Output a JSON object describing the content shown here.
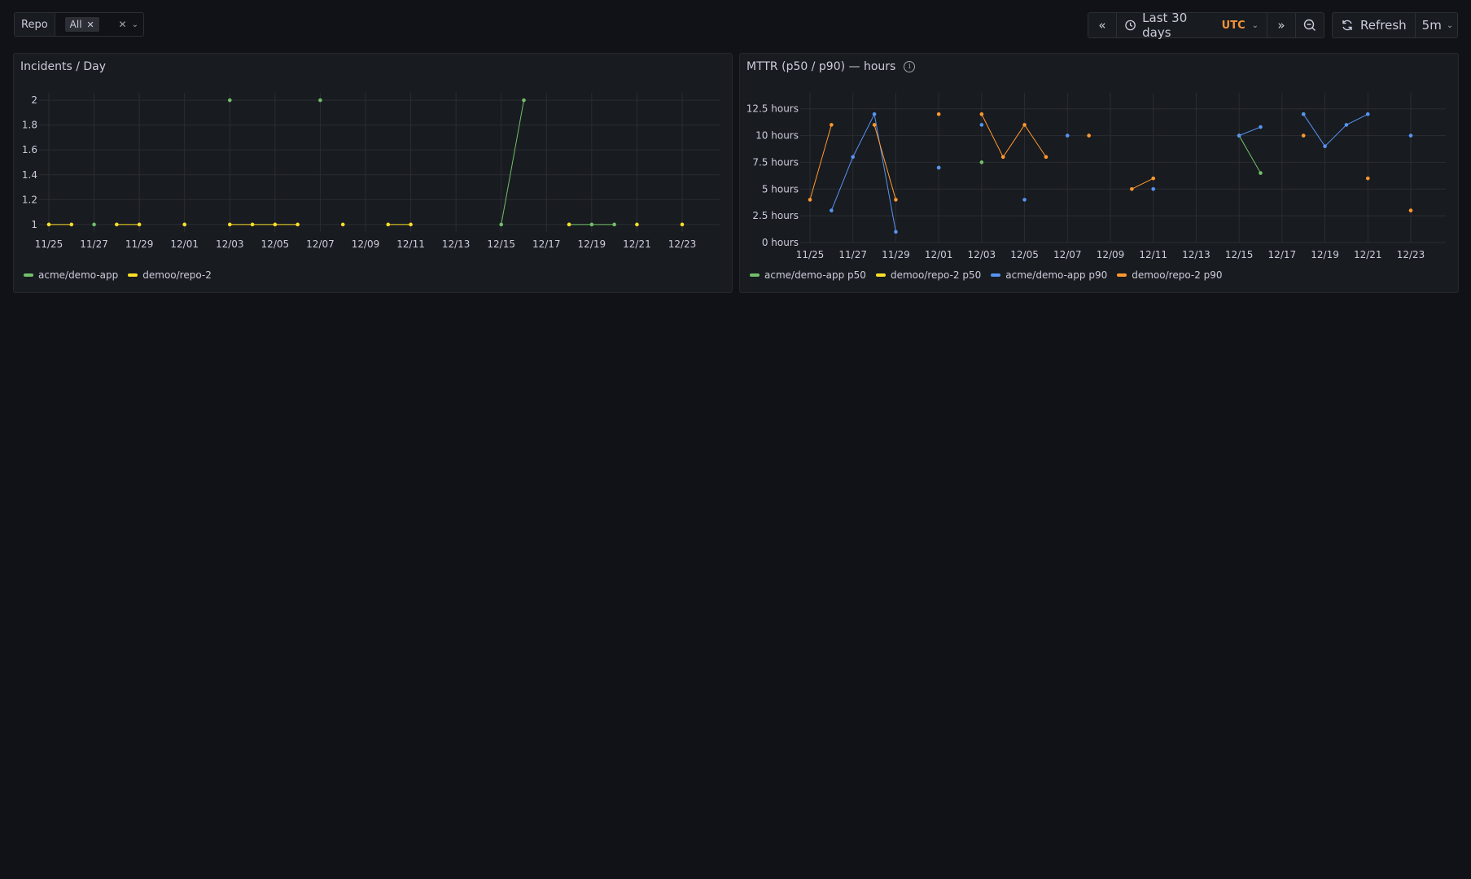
{
  "variables": {
    "repo_label": "Repo",
    "repo_value": "All",
    "clear_icon": "close-icon",
    "caret_icon": "chevron-down-icon"
  },
  "toolbar": {
    "time_range": "Last 30 days",
    "timezone": "UTC",
    "refresh_label": "Refresh",
    "refresh_interval": "5m",
    "icons": [
      "angle-double-left-icon",
      "clock-icon",
      "angle-double-right-icon",
      "zoom-out-icon",
      "sync-icon"
    ]
  },
  "colors": {
    "background": "#111217",
    "panel": "#181b1f",
    "green": "#73bf69",
    "yellow": "#fade2a",
    "blue": "#5794f2",
    "orange": "#ff9830",
    "accent_utc": "#f2933a"
  },
  "panels": [
    {
      "title": "Incidents / Day"
    },
    {
      "title": "MTTR (p50 / p90) — hours",
      "info_icon": "info-circle-icon"
    }
  ],
  "chart_data": [
    {
      "type": "line",
      "title": "Incidents / Day",
      "x": [
        "11/25",
        "11/26",
        "11/27",
        "11/28",
        "11/29",
        "11/30",
        "12/01",
        "12/02",
        "12/03",
        "12/04",
        "12/05",
        "12/06",
        "12/07",
        "12/08",
        "12/09",
        "12/10",
        "12/11",
        "12/12",
        "12/13",
        "12/14",
        "12/15",
        "12/16",
        "12/17",
        "12/18",
        "12/19",
        "12/20",
        "12/21",
        "12/22",
        "12/23"
      ],
      "x_ticks": [
        "11/25",
        "11/27",
        "11/29",
        "12/01",
        "12/03",
        "12/05",
        "12/07",
        "12/09",
        "12/11",
        "12/13",
        "12/15",
        "12/17",
        "12/19",
        "12/21",
        "12/23"
      ],
      "y_ticks": [
        "1",
        "1.2",
        "1.4",
        "1.6",
        "1.8",
        "2"
      ],
      "ylim": [
        1,
        2
      ],
      "grid": true,
      "legend": "bottom-left",
      "series": [
        {
          "name": "acme/demo-app",
          "color": "#73bf69",
          "values": [
            null,
            null,
            1,
            null,
            null,
            null,
            1,
            null,
            2,
            null,
            null,
            null,
            2,
            null,
            null,
            null,
            null,
            null,
            null,
            null,
            1,
            2,
            null,
            1,
            1,
            1,
            null,
            null,
            null
          ]
        },
        {
          "name": "demoo/repo-2",
          "color": "#fade2a",
          "values": [
            1,
            1,
            null,
            1,
            1,
            null,
            1,
            null,
            1,
            1,
            1,
            1,
            null,
            1,
            null,
            1,
            1,
            null,
            null,
            null,
            null,
            null,
            null,
            1,
            null,
            null,
            1,
            null,
            1
          ]
        }
      ]
    },
    {
      "type": "line",
      "title": "MTTR (p50 / p90) — hours",
      "x": [
        "11/25",
        "11/26",
        "11/27",
        "11/28",
        "11/29",
        "11/30",
        "12/01",
        "12/02",
        "12/03",
        "12/04",
        "12/05",
        "12/06",
        "12/07",
        "12/08",
        "12/09",
        "12/10",
        "12/11",
        "12/12",
        "12/13",
        "12/14",
        "12/15",
        "12/16",
        "12/17",
        "12/18",
        "12/19",
        "12/20",
        "12/21",
        "12/22",
        "12/23"
      ],
      "x_ticks": [
        "11/25",
        "11/27",
        "11/29",
        "12/01",
        "12/03",
        "12/05",
        "12/07",
        "12/09",
        "12/11",
        "12/13",
        "12/15",
        "12/17",
        "12/19",
        "12/21",
        "12/23"
      ],
      "y_ticks": [
        "0 hours",
        "2.5 hours",
        "5 hours",
        "7.5 hours",
        "10 hours",
        "12.5 hours"
      ],
      "ylim": [
        0,
        14
      ],
      "grid": true,
      "legend": "bottom-left",
      "series": [
        {
          "name": "acme/demo-app p50",
          "color": "#73bf69",
          "values": [
            null,
            null,
            null,
            null,
            null,
            null,
            7,
            null,
            7.5,
            null,
            null,
            null,
            null,
            null,
            null,
            null,
            null,
            null,
            null,
            null,
            10,
            6.5,
            null,
            12,
            null,
            null,
            null,
            null,
            null
          ]
        },
        {
          "name": "demoo/repo-2 p50",
          "color": "#fade2a",
          "values": [
            null,
            null,
            null,
            null,
            null,
            null,
            null,
            null,
            null,
            null,
            null,
            null,
            null,
            null,
            null,
            null,
            null,
            null,
            null,
            null,
            null,
            null,
            null,
            null,
            null,
            null,
            null,
            null,
            null
          ]
        },
        {
          "name": "acme/demo-app p90",
          "color": "#5794f2",
          "values": [
            null,
            3,
            8,
            12,
            1,
            null,
            7,
            null,
            11,
            null,
            4,
            null,
            10,
            null,
            null,
            null,
            5,
            null,
            null,
            null,
            10,
            10.8,
            null,
            12,
            9,
            11,
            12,
            null,
            10
          ]
        },
        {
          "name": "demoo/repo-2 p90",
          "color": "#ff9830",
          "values": [
            4,
            11,
            null,
            11,
            4,
            null,
            12,
            null,
            12,
            8,
            11,
            8,
            null,
            10,
            null,
            5,
            6,
            null,
            null,
            null,
            null,
            null,
            null,
            10,
            null,
            null,
            6,
            null,
            3
          ]
        }
      ]
    }
  ]
}
